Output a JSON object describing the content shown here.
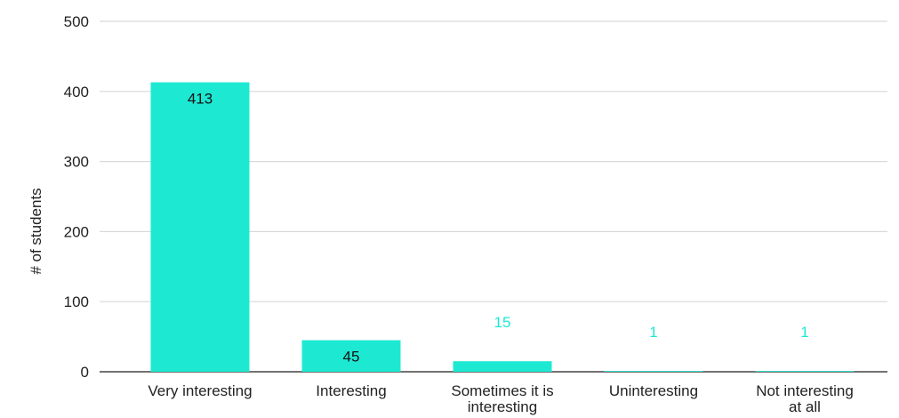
{
  "chart_data": {
    "type": "bar",
    "title": "",
    "xlabel": "",
    "ylabel": "# of students",
    "ylim": [
      0,
      500
    ],
    "yticks": [
      0,
      100,
      200,
      300,
      400,
      500
    ],
    "grid": true,
    "legend": "none",
    "categories": [
      [
        "Very interesting"
      ],
      [
        "Interesting"
      ],
      [
        "Sometimes it is",
        "interesting"
      ],
      [
        "Uninteresting"
      ],
      [
        "Not interesting",
        "at all"
      ]
    ],
    "values": [
      413,
      45,
      15,
      1,
      1
    ],
    "data_labels": [
      "413",
      "45",
      "15",
      "1",
      "1"
    ],
    "colors": {
      "bar": "#1de9d3",
      "label_inside": "#111111",
      "label_outside": "#1de9d3",
      "grid": "#d9d9d9",
      "axis": "#444444"
    }
  }
}
